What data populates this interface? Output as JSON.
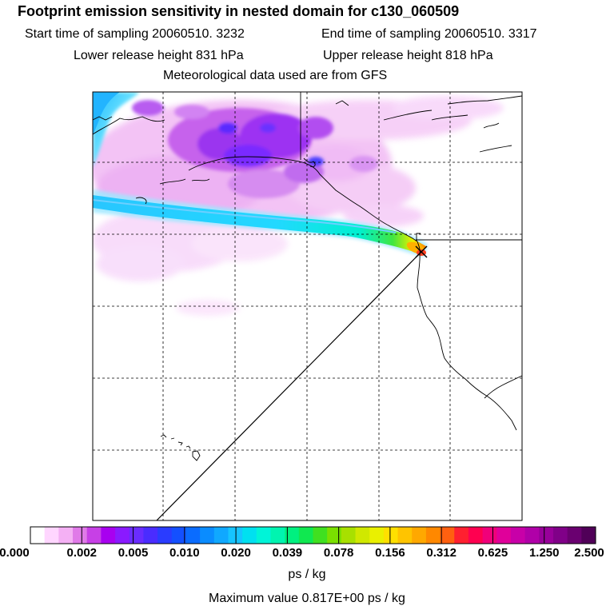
{
  "title": "Footprint emission sensitivity in nested domain for c130_060509",
  "start_time": "Start time of sampling 20060510.  3232",
  "end_time": "End time of sampling 20060510.  3317",
  "lower_release_height": "Lower release height  831 hPa",
  "upper_release_height": "Upper release height  818 hPa",
  "met_data": "Meteorological data used are from GFS",
  "colorbar": {
    "tick_labels": [
      "0.000",
      "0.002",
      "0.005",
      "0.010",
      "0.020",
      "0.039",
      "0.078",
      "0.156",
      "0.312",
      "0.625",
      "1.250",
      "2.500"
    ],
    "colors": [
      "#ffffff",
      "#ffd6ff",
      "#f4b0f4",
      "#e07ae8",
      "#c740e6",
      "#a800f0",
      "#8a1aff",
      "#6a2cff",
      "#4a2cff",
      "#2a3cff",
      "#1450ff",
      "#0a6cff",
      "#0a8cff",
      "#10a8ff",
      "#16c4ff",
      "#00e0f0",
      "#00f4d8",
      "#00f4b0",
      "#00f080",
      "#10e850",
      "#40e020",
      "#7ae000",
      "#a8e000",
      "#d0e800",
      "#eaf000",
      "#ffe000",
      "#ffc400",
      "#ffa800",
      "#ff8800",
      "#ff6010",
      "#ff2030",
      "#ff0050",
      "#f0007a",
      "#e0009a",
      "#c800a8",
      "#b000a8",
      "#98009a",
      "#800088",
      "#6a0070",
      "#500058"
    ],
    "units": "ps / kg"
  },
  "max_value": "Maximum value  0.817E+00 ps / kg"
}
